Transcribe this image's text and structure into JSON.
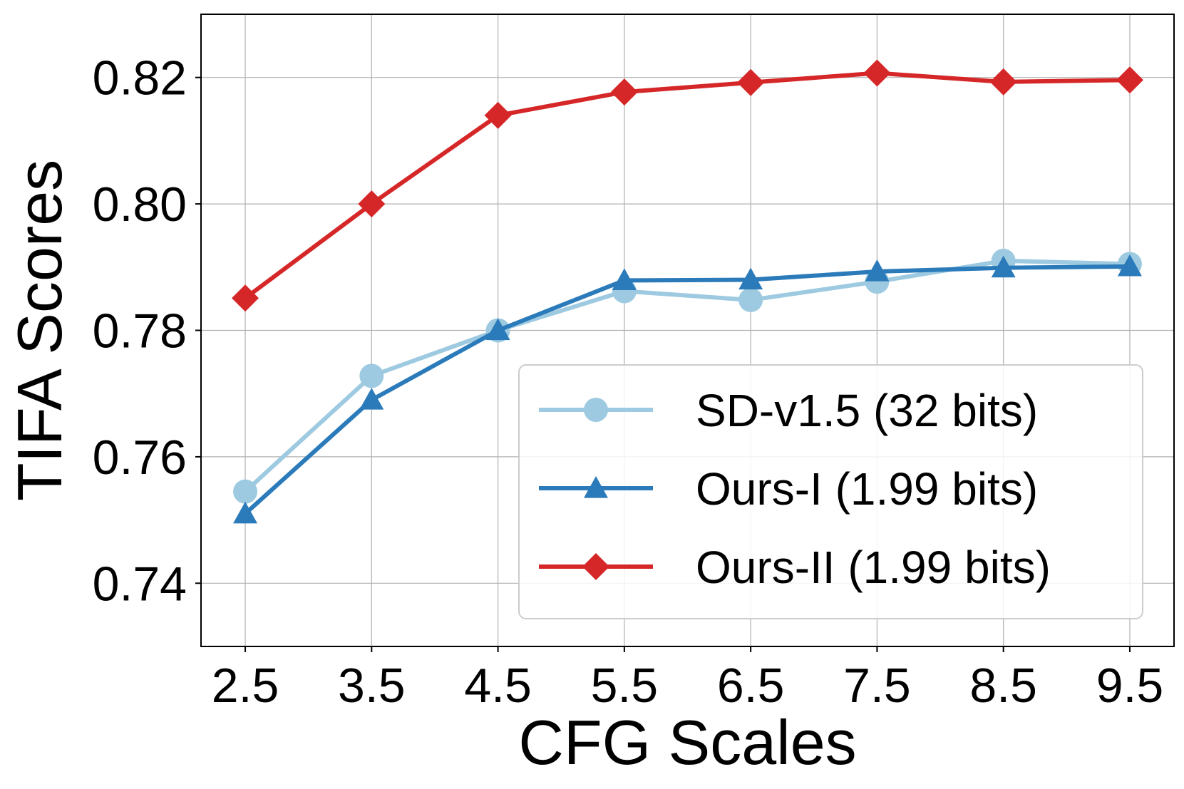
{
  "chart_data": {
    "type": "line",
    "title": "",
    "xlabel": "CFG Scales",
    "ylabel": "TIFA Scores",
    "x": [
      2.5,
      3.5,
      4.5,
      5.5,
      6.5,
      7.5,
      8.5,
      9.5
    ],
    "x_tick_labels": [
      "2.5",
      "3.5",
      "4.5",
      "5.5",
      "6.5",
      "7.5",
      "8.5",
      "9.5"
    ],
    "xlim": [
      2.15,
      9.85
    ],
    "y_ticks": [
      0.74,
      0.76,
      0.78,
      0.8,
      0.82
    ],
    "y_tick_labels": [
      "0.74",
      "0.76",
      "0.78",
      "0.80",
      "0.82"
    ],
    "ylim": [
      0.73,
      0.83
    ],
    "grid": true,
    "legend_position": "lower-right",
    "series": [
      {
        "name": "SD-v1.5 (32 bits)",
        "marker": "circle",
        "color": "#9ecae1",
        "values": [
          0.7545,
          0.7728,
          0.78,
          0.7862,
          0.7848,
          0.7877,
          0.791,
          0.7905
        ]
      },
      {
        "name": "Ours-I (1.99 bits)",
        "marker": "triangle",
        "color": "#2b7bba",
        "values": [
          0.751,
          0.769,
          0.78,
          0.7879,
          0.788,
          0.7893,
          0.7899,
          0.7901
        ]
      },
      {
        "name": "Ours-II (1.99 bits)",
        "marker": "diamond",
        "color": "#d62728",
        "values": [
          0.7851,
          0.8,
          0.814,
          0.8177,
          0.8192,
          0.8207,
          0.8193,
          0.8196
        ]
      }
    ]
  }
}
